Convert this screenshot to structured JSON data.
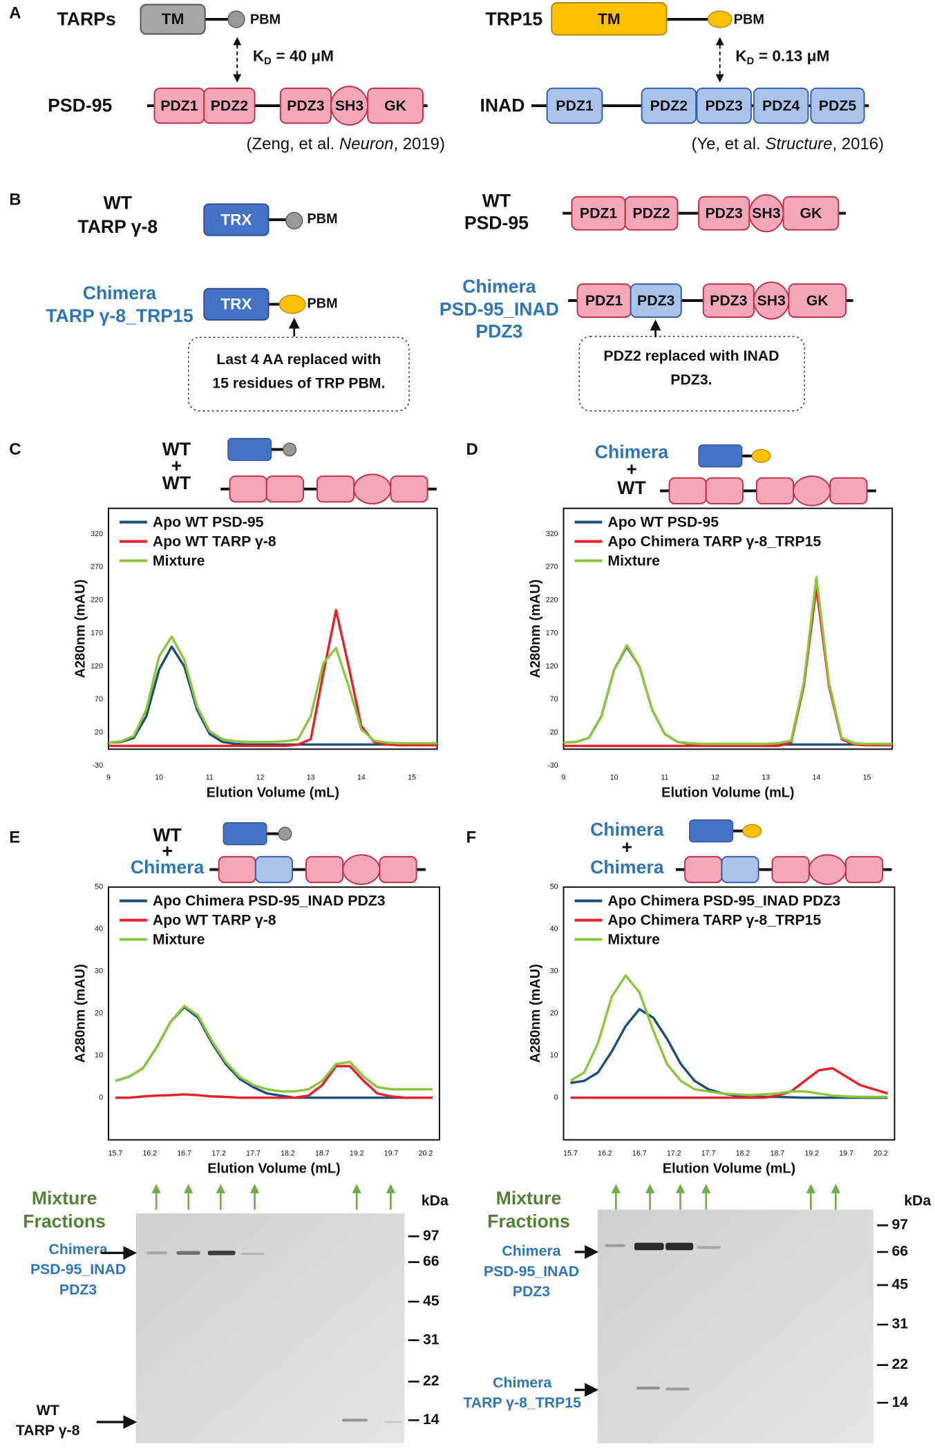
{
  "panel_labels": [
    "A",
    "B",
    "C",
    "D",
    "E",
    "F"
  ],
  "panel_a": {
    "left": {
      "name": "TARPs",
      "tm": "TM",
      "pbm": "PBM",
      "kd": "K",
      "kd_sub": "D",
      "kd_value": "= 40 μM",
      "partner": "PSD-95",
      "domains": [
        "PDZ1",
        "PDZ2",
        "PDZ3",
        "SH3",
        "GK"
      ],
      "citation": [
        "(Zeng, et al. ",
        "Neuron",
        ", 2019)"
      ]
    },
    "right": {
      "name": "TRP15",
      "tm": "TM",
      "pbm": "PBM",
      "kd": "K",
      "kd_sub": "D",
      "kd_value": "= 0.13 μM",
      "partner": "INAD",
      "domains": [
        "PDZ1",
        "PDZ2",
        "PDZ3",
        "PDZ4",
        "PDZ5"
      ],
      "citation": [
        "(Ye, et al. ",
        "Structure",
        ", 2016)"
      ]
    }
  },
  "panel_b": {
    "wt_tarp": {
      "label": [
        "WT",
        "TARP γ-8"
      ],
      "trx": "TRX",
      "pbm": "PBM"
    },
    "wt_psd95": {
      "label": [
        "WT",
        "PSD-95"
      ],
      "domains": [
        "PDZ1",
        "PDZ2",
        "PDZ3",
        "SH3",
        "GK"
      ]
    },
    "chimera_tarp": {
      "label": [
        "Chimera",
        "TARP γ-8_TRP15"
      ],
      "trx": "TRX",
      "pbm": "PBM",
      "note": [
        "Last 4 AA replaced with",
        "15 residues of TRP PBM."
      ]
    },
    "chimera_psd95": {
      "label": [
        "Chimera",
        "PSD-95_INAD",
        "PDZ3"
      ],
      "domains": [
        "PDZ1",
        "PDZ3",
        "PDZ3",
        "SH3",
        "GK"
      ],
      "note": [
        "PDZ2 replaced with INAD",
        "PDZ3."
      ]
    }
  },
  "mixes": [
    [
      "WT",
      "+",
      "WT"
    ],
    [
      "Chimera",
      "+",
      "WT"
    ],
    [
      "WT",
      "+",
      "Chimera"
    ],
    [
      "Chimera",
      "+",
      "Chimera"
    ]
  ],
  "chart_data": [
    {
      "type": "line",
      "x_label": "Elution Volume (mL)",
      "y_label": "A280nm (mAU)",
      "x": [
        9,
        9.25,
        9.5,
        9.75,
        10,
        10.25,
        10.5,
        10.75,
        11,
        11.25,
        11.5,
        11.75,
        12,
        12.25,
        12.5,
        12.75,
        13,
        13.25,
        13.5,
        13.75,
        14,
        14.25,
        14.5,
        14.75,
        15,
        15.25,
        15.5
      ],
      "xlim": [
        9,
        15.5
      ],
      "xticks": [
        9,
        10,
        11,
        12,
        13,
        14,
        15
      ],
      "ylim": [
        -30,
        370
      ],
      "yticks": [
        -30,
        20,
        70,
        120,
        170,
        220,
        270,
        320
      ],
      "series": [
        {
          "name": "Apo WT PSD-95",
          "color": "#1f4e79",
          "values": [
            5,
            6,
            12,
            45,
            115,
            150,
            120,
            55,
            18,
            6,
            3,
            2,
            2,
            2,
            2,
            2,
            2,
            2,
            2,
            2,
            2,
            2,
            2,
            2,
            2,
            2,
            2
          ]
        },
        {
          "name": "Apo WT TARP γ-8",
          "color": "#e8202a",
          "values": [
            0,
            0,
            0,
            0,
            0,
            0,
            0,
            0,
            0,
            0,
            0,
            0,
            0,
            0,
            0,
            2,
            10,
            110,
            205,
            120,
            30,
            6,
            2,
            1,
            1,
            1,
            1
          ]
        },
        {
          "name": "Mixture",
          "color": "#8cc63f",
          "values": [
            5,
            7,
            15,
            55,
            135,
            165,
            130,
            60,
            22,
            10,
            7,
            6,
            6,
            6,
            7,
            10,
            45,
            125,
            148,
            90,
            25,
            8,
            5,
            4,
            4,
            4,
            4
          ]
        }
      ]
    },
    {
      "type": "line",
      "x_label": "Elution Volume (mL)",
      "y_label": "A280nm (mAU)",
      "x": [
        9,
        9.25,
        9.5,
        9.75,
        10,
        10.25,
        10.5,
        10.75,
        11,
        11.25,
        11.5,
        11.75,
        12,
        12.25,
        12.5,
        12.75,
        13,
        13.25,
        13.5,
        13.75,
        14,
        14.25,
        14.5,
        14.75,
        15,
        15.25,
        15.5
      ],
      "xlim": [
        9,
        15.5
      ],
      "xticks": [
        9,
        10,
        11,
        12,
        13,
        14,
        15
      ],
      "ylim": [
        -30,
        370
      ],
      "yticks": [
        -30,
        20,
        70,
        120,
        170,
        220,
        270,
        320
      ],
      "series": [
        {
          "name": "Apo WT PSD-95",
          "color": "#1f4e79",
          "values": [
            5,
            6,
            12,
            45,
            115,
            150,
            120,
            55,
            18,
            6,
            3,
            2,
            2,
            2,
            2,
            2,
            2,
            2,
            2,
            2,
            2,
            2,
            2,
            2,
            2,
            2,
            2
          ]
        },
        {
          "name": "Apo Chimera TARP γ-8_TRP15",
          "color": "#e8202a",
          "values": [
            0,
            0,
            0,
            0,
            0,
            0,
            0,
            0,
            0,
            0,
            0,
            0,
            0,
            0,
            0,
            0,
            0,
            0,
            5,
            90,
            240,
            90,
            10,
            2,
            1,
            1,
            1
          ]
        },
        {
          "name": "Mixture",
          "color": "#8cc63f",
          "values": [
            5,
            6,
            12,
            45,
            115,
            152,
            120,
            55,
            18,
            6,
            4,
            3,
            3,
            3,
            3,
            3,
            3,
            4,
            8,
            95,
            255,
            95,
            12,
            4,
            3,
            3,
            3
          ]
        }
      ]
    },
    {
      "type": "line",
      "x_label": "Elution Volume (mL)",
      "y_label": "A280nm (mAU)",
      "x": [
        15.7,
        15.9,
        16.1,
        16.3,
        16.5,
        16.7,
        16.9,
        17.1,
        17.3,
        17.5,
        17.7,
        17.9,
        18.1,
        18.3,
        18.5,
        18.7,
        18.9,
        19.1,
        19.3,
        19.5,
        19.7,
        19.9,
        20.1,
        20.3
      ],
      "xlim": [
        15.6,
        20.4
      ],
      "xticks": [
        15.7,
        16.2,
        16.7,
        17.2,
        17.7,
        18.2,
        18.7,
        19.2,
        19.7,
        20.2
      ],
      "ylim": [
        -10,
        50
      ],
      "yticks": [
        0,
        10,
        20,
        30,
        40,
        50
      ],
      "series": [
        {
          "name": "Apo Chimera PSD-95_INAD PDZ3",
          "color": "#1f4e79",
          "values": [
            4,
            5,
            7,
            12,
            18,
            21.5,
            19,
            13,
            8,
            4.5,
            2.5,
            1,
            0.5,
            0,
            0,
            0,
            0,
            0,
            0,
            0,
            0,
            0,
            0,
            0
          ]
        },
        {
          "name": "Apo WT TARP γ-8",
          "color": "#e8202a",
          "values": [
            0,
            0,
            0.3,
            0.5,
            0.6,
            0.8,
            0.6,
            0.3,
            0.2,
            0,
            0,
            0,
            0,
            0,
            0.5,
            3,
            7.5,
            7.5,
            4,
            1,
            0.3,
            0,
            0,
            0
          ]
        },
        {
          "name": "Mixture",
          "color": "#8cc63f",
          "values": [
            4,
            5,
            7,
            12,
            18,
            21.8,
            19.5,
            13.5,
            8.5,
            5,
            3,
            2,
            1.5,
            1.5,
            2,
            4,
            8,
            8.5,
            5,
            2.5,
            2,
            2,
            2,
            2
          ]
        }
      ]
    },
    {
      "type": "line",
      "x_label": "Elution Volume (mL)",
      "y_label": "A280nm (mAU)",
      "x": [
        15.7,
        15.9,
        16.1,
        16.3,
        16.5,
        16.7,
        16.9,
        17.1,
        17.3,
        17.5,
        17.7,
        17.9,
        18.1,
        18.3,
        18.5,
        18.7,
        18.9,
        19.1,
        19.3,
        19.5,
        19.7,
        19.9,
        20.1,
        20.3
      ],
      "xlim": [
        15.6,
        20.4
      ],
      "xticks": [
        15.7,
        16.2,
        16.7,
        17.2,
        17.7,
        18.2,
        18.7,
        19.2,
        19.7,
        20.2
      ],
      "ylim": [
        -10,
        50
      ],
      "yticks": [
        0,
        10,
        20,
        30,
        40,
        50
      ],
      "series": [
        {
          "name": "Apo Chimera PSD-95_INAD PDZ3",
          "color": "#1f4e79",
          "values": [
            3.5,
            4,
            6,
            11,
            17,
            21,
            19,
            14,
            8,
            4,
            2,
            1,
            0.5,
            0.3,
            0.2,
            0.2,
            0.1,
            0,
            0,
            0,
            0,
            0,
            0,
            0
          ]
        },
        {
          "name": "Apo Chimera TARP γ-8_TRP15",
          "color": "#e8202a",
          "values": [
            0,
            0,
            0,
            0,
            0,
            0,
            0,
            0,
            0,
            0,
            0,
            0,
            0,
            0,
            0,
            0.5,
            1.5,
            4,
            6.5,
            7,
            5,
            3,
            2,
            1
          ]
        },
        {
          "name": "Mixture",
          "color": "#8cc63f",
          "values": [
            4,
            6,
            13,
            24,
            29,
            25,
            16,
            8,
            4,
            2,
            1.5,
            1,
            0.8,
            0.6,
            0.8,
            1,
            1.5,
            1.5,
            1,
            0.5,
            0.3,
            0.2,
            0.2,
            0.2
          ]
        }
      ]
    }
  ],
  "gels": [
    {
      "title": [
        "Mixture",
        "Fractions"
      ],
      "unit": "kDa",
      "markers": [
        97,
        66,
        45,
        31,
        22,
        14
      ],
      "bands": [
        {
          "label": [
            "Chimera",
            "PSD-95_INAD",
            "PDZ3"
          ]
        },
        {
          "label": [
            "WT",
            "TARP γ-8"
          ]
        }
      ]
    },
    {
      "title": [
        "Mixture",
        "Fractions"
      ],
      "unit": "kDa",
      "markers": [
        97,
        66,
        45,
        31,
        22,
        14
      ],
      "bands": [
        {
          "label": [
            "Chimera",
            "PSD-95_INAD",
            "PDZ3"
          ]
        },
        {
          "label": [
            "Chimera",
            "TARP γ-8_TRP15"
          ]
        }
      ]
    }
  ]
}
